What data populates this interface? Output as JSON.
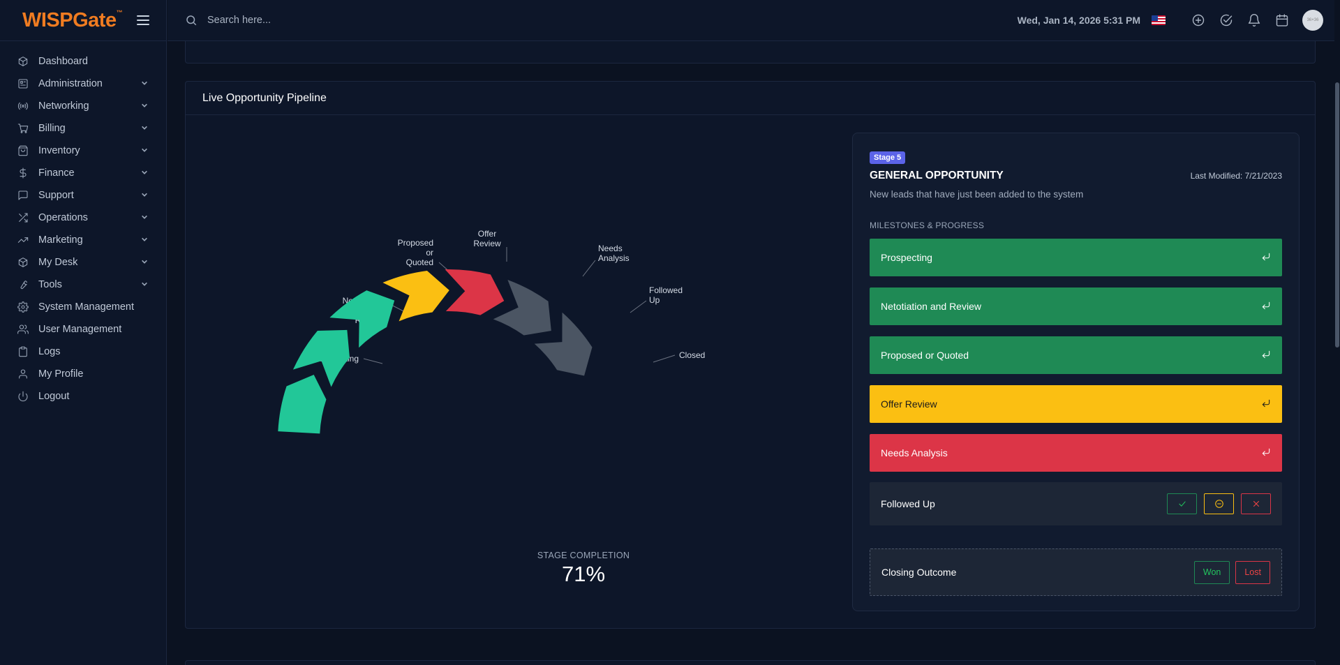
{
  "brand": {
    "logo_text": "WISPGate",
    "logo_mark": "™"
  },
  "topbar": {
    "search_placeholder": "Search here...",
    "datetime": "Wed, Jan 14, 2026 5:31 PM",
    "avatar_text": "36×36"
  },
  "sidebar": {
    "items": [
      {
        "label": "Dashboard",
        "icon": "cube-icon",
        "has_children": false
      },
      {
        "label": "Administration",
        "icon": "grid-icon",
        "has_children": true
      },
      {
        "label": "Networking",
        "icon": "broadcast-icon",
        "has_children": true
      },
      {
        "label": "Billing",
        "icon": "cart-icon",
        "has_children": true
      },
      {
        "label": "Inventory",
        "icon": "bag-icon",
        "has_children": true
      },
      {
        "label": "Finance",
        "icon": "dollar-icon",
        "has_children": true
      },
      {
        "label": "Support",
        "icon": "message-icon",
        "has_children": true
      },
      {
        "label": "Operations",
        "icon": "shuffle-icon",
        "has_children": true
      },
      {
        "label": "Marketing",
        "icon": "trending-icon",
        "has_children": true
      },
      {
        "label": "My Desk",
        "icon": "box-icon",
        "has_children": true
      },
      {
        "label": "Tools",
        "icon": "wrench-icon",
        "has_children": true
      },
      {
        "label": "System Management",
        "icon": "gear-icon",
        "has_children": false
      },
      {
        "label": "User Management",
        "icon": "users-icon",
        "has_children": false
      },
      {
        "label": "Logs",
        "icon": "clipboard-icon",
        "has_children": false
      },
      {
        "label": "My Profile",
        "icon": "user-icon",
        "has_children": false
      },
      {
        "label": "Logout",
        "icon": "power-icon",
        "has_children": false
      }
    ]
  },
  "pipeline": {
    "title": "Live Opportunity Pipeline",
    "completion_label": "STAGE COMPLETION",
    "completion_value": "71%",
    "segments": [
      {
        "label": "Prospecting",
        "color": "#22c798",
        "state": "complete"
      },
      {
        "label": "Netotiation and Review",
        "color": "#22c798",
        "state": "complete"
      },
      {
        "label": "Proposed or Quoted",
        "color": "#22c798",
        "state": "complete"
      },
      {
        "label": "Offer Review",
        "color": "#fbbf12",
        "state": "review"
      },
      {
        "label": "Needs Analysis",
        "color": "#dc3547",
        "state": "issue"
      },
      {
        "label": "Followed Up",
        "color": "#4b5563",
        "state": "pending"
      },
      {
        "label": "Closed",
        "color": "#4b5563",
        "state": "pending"
      }
    ]
  },
  "stage": {
    "badge": "Stage 5",
    "title": "GENERAL OPPORTUNITY",
    "last_modified": "Last Modified: 7/21/2023",
    "description": "New leads that have just been added to the system",
    "milestones_label": "MILESTONES & PROGRESS",
    "milestones": [
      {
        "label": "Prospecting",
        "style": "green"
      },
      {
        "label": "Netotiation and Review",
        "style": "green"
      },
      {
        "label": "Proposed or Quoted",
        "style": "green"
      },
      {
        "label": "Offer Review",
        "style": "yellow"
      },
      {
        "label": "Needs Analysis",
        "style": "red"
      }
    ],
    "followed_up_label": "Followed Up",
    "closing_label": "Closing Outcome",
    "won_label": "Won",
    "lost_label": "Lost"
  },
  "colors": {
    "bg": "#0b1221",
    "panel": "#0d1629",
    "accent": "#f07c21",
    "green": "#1f8a55",
    "yellow": "#fbbf12",
    "red": "#dc3547",
    "badge": "#5b63e8"
  }
}
